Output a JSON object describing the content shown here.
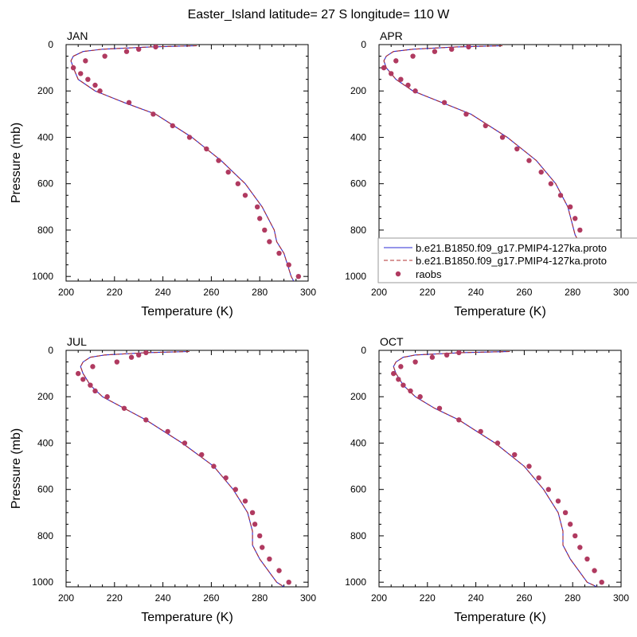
{
  "title": "Easter_Island  latitude= 27 S longitude= 110 W",
  "colors": {
    "model_a": "#2b2bd6",
    "model_b": "#b03030",
    "raobs": "#b03a60"
  },
  "legend": {
    "series_a": "b.e21.B1850.f09_g17.PMIP4-127ka.proto",
    "series_b": "b.e21.B1850.f09_g17.PMIP4-127ka.proto",
    "series_obs": "raobs"
  },
  "chart_data": [
    {
      "type": "line",
      "panel": "JAN",
      "xlabel": "Temperature (K)",
      "ylabel": "Pressure (mb)",
      "xlim": [
        200,
        300
      ],
      "ylim": [
        1020,
        0
      ],
      "xticks": [
        200,
        220,
        240,
        260,
        280,
        300
      ],
      "yticks": [
        0,
        200,
        400,
        600,
        800,
        1000
      ],
      "series": [
        {
          "name": "b.e21.B1850.f09_g17.PMIP4-127ka.proto",
          "p": [
            5,
            10,
            20,
            30,
            50,
            70,
            100,
            150,
            200,
            250,
            300,
            400,
            500,
            600,
            700,
            800,
            850,
            900,
            1000,
            1020
          ],
          "t": [
            254,
            235,
            215,
            207,
            203,
            202,
            203,
            205,
            212,
            224,
            237,
            252,
            264,
            274,
            281,
            286,
            287,
            290,
            293,
            294
          ]
        },
        {
          "name": "b.e21.B1850.f09_g17.PMIP4-127ka.proto",
          "p": [
            5,
            10,
            20,
            30,
            50,
            70,
            100,
            150,
            200,
            250,
            300,
            400,
            500,
            600,
            700,
            800,
            850,
            900,
            1000,
            1020
          ],
          "t": [
            254,
            235,
            215,
            207,
            203,
            202,
            203,
            205,
            212,
            224,
            237,
            252,
            264,
            274,
            281,
            286,
            287,
            290,
            293,
            294
          ]
        },
        {
          "name": "raobs",
          "p": [
            10,
            20,
            30,
            50,
            70,
            100,
            125,
            150,
            175,
            200,
            250,
            300,
            350,
            400,
            450,
            500,
            550,
            600,
            650,
            700,
            750,
            800,
            850,
            900,
            950,
            1000
          ],
          "t": [
            237,
            230,
            225,
            216,
            208,
            203,
            206,
            209,
            212,
            214,
            226,
            236,
            244,
            251,
            258,
            263,
            267,
            271,
            274,
            279,
            280,
            282,
            284,
            288,
            292,
            296
          ]
        }
      ]
    },
    {
      "type": "line",
      "panel": "APR",
      "xlabel": "Temperature (K)",
      "ylabel": "",
      "xlim": [
        200,
        300
      ],
      "ylim": [
        1020,
        0
      ],
      "xticks": [
        200,
        220,
        240,
        260,
        280,
        300
      ],
      "yticks": [
        0,
        200,
        400,
        600,
        800,
        1000
      ],
      "series": [
        {
          "name": "b.e21.B1850.f09_g17.PMIP4-127ka.proto",
          "p": [
            5,
            10,
            20,
            30,
            50,
            70,
            100,
            150,
            200,
            250,
            300,
            400,
            500,
            600,
            700,
            780,
            820,
            900,
            1000,
            1020
          ],
          "t": [
            251,
            232,
            214,
            206,
            203,
            202,
            203,
            207,
            214,
            226,
            238,
            253,
            265,
            273,
            278,
            280,
            281,
            285,
            291,
            293
          ]
        },
        {
          "name": "b.e21.B1850.f09_g17.PMIP4-127ka.proto",
          "p": [
            5,
            10,
            20,
            30,
            50,
            70,
            100,
            150,
            200,
            250,
            300,
            400,
            500,
            600,
            700,
            780,
            820,
            900,
            1000,
            1020
          ],
          "t": [
            251,
            232,
            214,
            206,
            203,
            202,
            203,
            207,
            214,
            226,
            238,
            253,
            265,
            273,
            278,
            280,
            281,
            285,
            291,
            293
          ]
        },
        {
          "name": "raobs",
          "p": [
            10,
            20,
            30,
            50,
            70,
            100,
            125,
            150,
            175,
            200,
            250,
            300,
            350,
            400,
            450,
            500,
            550,
            600,
            650,
            700,
            750,
            800,
            850,
            900,
            950,
            1000
          ],
          "t": [
            237,
            230,
            223,
            214,
            207,
            202,
            205,
            209,
            212,
            215,
            227,
            236,
            244,
            251,
            257,
            262,
            267,
            271,
            275,
            279,
            281,
            283,
            286,
            289,
            293,
            295
          ]
        }
      ]
    },
    {
      "type": "line",
      "panel": "JUL",
      "xlabel": "Temperature (K)",
      "ylabel": "Pressure (mb)",
      "xlim": [
        200,
        300
      ],
      "ylim": [
        1020,
        0
      ],
      "xticks": [
        200,
        220,
        240,
        260,
        280,
        300
      ],
      "yticks": [
        0,
        200,
        400,
        600,
        800,
        1000
      ],
      "series": [
        {
          "name": "b.e21.B1850.f09_g17.PMIP4-127ka.proto",
          "p": [
            5,
            10,
            20,
            30,
            50,
            70,
            100,
            150,
            200,
            250,
            300,
            400,
            500,
            600,
            700,
            780,
            840,
            900,
            1000,
            1020
          ],
          "t": [
            251,
            233,
            216,
            210,
            207,
            206,
            207,
            210,
            215,
            224,
            233,
            248,
            261,
            269,
            275,
            277,
            277,
            280,
            287,
            290
          ]
        },
        {
          "name": "b.e21.B1850.f09_g17.PMIP4-127ka.proto",
          "p": [
            5,
            10,
            20,
            30,
            50,
            70,
            100,
            150,
            200,
            250,
            300,
            400,
            500,
            600,
            700,
            780,
            840,
            900,
            1000,
            1020
          ],
          "t": [
            251,
            233,
            216,
            210,
            207,
            206,
            207,
            210,
            215,
            224,
            233,
            248,
            261,
            269,
            275,
            277,
            277,
            280,
            287,
            290
          ]
        },
        {
          "name": "raobs",
          "p": [
            10,
            20,
            30,
            50,
            70,
            100,
            125,
            150,
            175,
            200,
            250,
            300,
            350,
            400,
            450,
            500,
            550,
            600,
            650,
            700,
            750,
            800,
            850,
            900,
            950,
            1000
          ],
          "t": [
            233,
            230,
            227,
            221,
            211,
            205,
            207,
            210,
            212,
            217,
            224,
            233,
            242,
            249,
            256,
            261,
            266,
            270,
            274,
            277,
            278,
            280,
            281,
            284,
            288,
            292
          ]
        }
      ]
    },
    {
      "type": "line",
      "panel": "OCT",
      "xlabel": "Temperature (K)",
      "ylabel": "",
      "xlim": [
        200,
        300
      ],
      "ylim": [
        1020,
        0
      ],
      "xticks": [
        200,
        220,
        240,
        260,
        280,
        300
      ],
      "yticks": [
        0,
        200,
        400,
        600,
        800,
        1000
      ],
      "series": [
        {
          "name": "b.e21.B1850.f09_g17.PMIP4-127ka.proto",
          "p": [
            5,
            10,
            20,
            30,
            50,
            70,
            100,
            150,
            200,
            250,
            300,
            400,
            500,
            600,
            700,
            780,
            840,
            900,
            1000,
            1020
          ],
          "t": [
            254,
            234,
            215,
            210,
            207,
            206,
            207,
            210,
            215,
            223,
            233,
            248,
            260,
            268,
            274,
            276,
            276,
            279,
            286,
            290
          ]
        },
        {
          "name": "b.e21.B1850.f09_g17.PMIP4-127ka.proto",
          "p": [
            5,
            10,
            20,
            30,
            50,
            70,
            100,
            150,
            200,
            250,
            300,
            400,
            500,
            600,
            700,
            780,
            840,
            900,
            1000,
            1020
          ],
          "t": [
            254,
            234,
            215,
            210,
            207,
            206,
            207,
            210,
            215,
            223,
            233,
            248,
            260,
            268,
            274,
            276,
            276,
            279,
            286,
            290
          ]
        },
        {
          "name": "raobs",
          "p": [
            10,
            20,
            30,
            50,
            70,
            100,
            125,
            150,
            175,
            200,
            250,
            300,
            350,
            400,
            450,
            500,
            550,
            600,
            650,
            700,
            750,
            800,
            850,
            900,
            950,
            1000
          ],
          "t": [
            233,
            228,
            222,
            215,
            209,
            206,
            208,
            210,
            213,
            217,
            225,
            233,
            242,
            249,
            256,
            262,
            266,
            270,
            274,
            277,
            279,
            281,
            283,
            286,
            289,
            292
          ]
        }
      ]
    }
  ]
}
